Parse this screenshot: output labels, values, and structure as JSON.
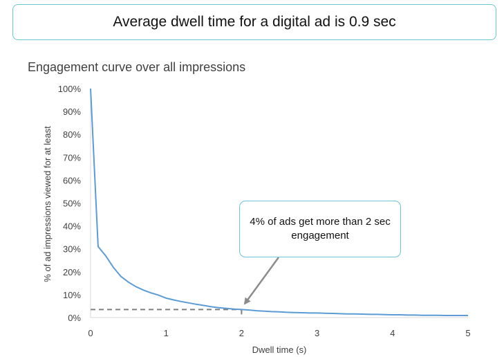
{
  "headline": "Average dwell time for a digital ad is 0.9 sec",
  "callout": "4% of ads get more than 2 sec engagement",
  "chart_data": {
    "type": "line",
    "title": "Engagement curve over all impressions",
    "xlabel": "Dwell time (s)",
    "ylabel": "% of ad impressions viewed for at least",
    "xlim": [
      0,
      5
    ],
    "ylim": [
      0,
      100
    ],
    "x_ticks": [
      "0",
      "1",
      "2",
      "3",
      "4",
      "5"
    ],
    "y_ticks": [
      "0%",
      "10%",
      "20%",
      "30%",
      "40%",
      "50%",
      "60%",
      "70%",
      "80%",
      "90%",
      "100%"
    ],
    "grid": false,
    "line_color": "#5b9bd5",
    "reference_line": {
      "x": 2,
      "y": 3.5,
      "style": "dashed"
    },
    "series": [
      {
        "x": [
          0,
          0.1,
          0.2,
          0.3,
          0.4,
          0.5,
          0.6,
          0.7,
          0.8,
          0.9,
          1.0,
          1.1,
          1.2,
          1.3,
          1.4,
          1.5,
          1.6,
          1.7,
          1.8,
          1.9,
          2.0,
          2.1,
          2.2,
          2.3,
          2.4,
          2.5,
          2.6,
          2.7,
          2.8,
          2.9,
          3.0,
          3.1,
          3.2,
          3.3,
          3.4,
          3.5,
          3.6,
          3.7,
          3.8,
          3.9,
          4.0,
          4.1,
          4.2,
          4.3,
          4.4,
          4.5,
          4.6,
          4.7,
          4.8,
          4.9,
          5.0
        ],
        "values": [
          100,
          31,
          27,
          22,
          18,
          15.5,
          13.5,
          12,
          10.8,
          9.8,
          8.5,
          7.7,
          7,
          6.4,
          5.8,
          5.3,
          4.7,
          4.3,
          4,
          3.7,
          3.5,
          3.3,
          3,
          2.8,
          2.6,
          2.5,
          2.3,
          2.2,
          2.1,
          2,
          2,
          1.9,
          1.8,
          1.7,
          1.6,
          1.6,
          1.5,
          1.4,
          1.4,
          1.3,
          1.2,
          1.2,
          1.1,
          1.1,
          1,
          1,
          1,
          0.9,
          0.9,
          0.9,
          0.9
        ]
      }
    ]
  }
}
